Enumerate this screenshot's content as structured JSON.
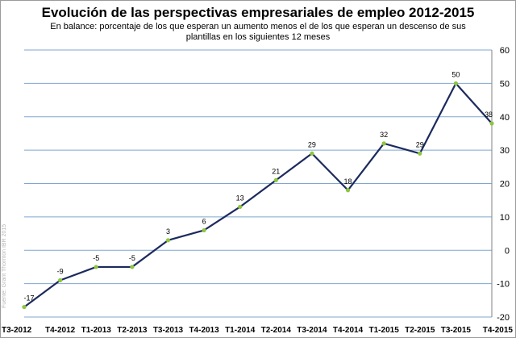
{
  "chart_data": {
    "type": "line",
    "title": "Evolución de las perspectivas empresariales de empleo 2012-2015",
    "subtitle_line1": "En balance: porcentaje de los que esperan un aumento menos el de los que esperan un descenso de sus",
    "subtitle_line2": "plantillas en los siguientes 12 meses",
    "source": "Fuente: Grant Thornton IBR 2015",
    "categories": [
      "T3-2012",
      "T4-2012",
      "T1-2013",
      "T2-2013",
      "T3-2013",
      "T4-2013",
      "T1-2014",
      "T2-2014",
      "T3-2014",
      "T4-2014",
      "T1-2015",
      "T2-2015",
      "T3-2015",
      "T4-2015"
    ],
    "values": [
      -17,
      -9,
      -5,
      -5,
      3,
      6,
      13,
      21,
      29,
      18,
      32,
      29,
      50,
      38
    ],
    "ylim": [
      -20,
      60
    ],
    "yticks": [
      -20,
      -10,
      0,
      10,
      20,
      30,
      40,
      50,
      60
    ],
    "grid": true,
    "axis_position": "right",
    "line_color": "#1c2a5e",
    "marker_color": "#8dc63f",
    "grid_color": "#7fa7d1"
  }
}
